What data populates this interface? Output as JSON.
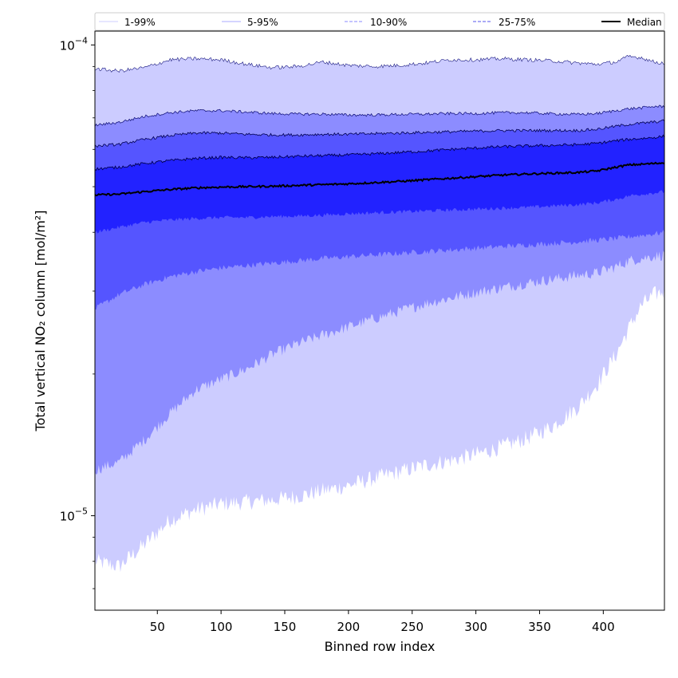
{
  "chart_data": {
    "type": "area",
    "title": "",
    "xlabel": "Binned row index",
    "ylabel": "Total vertical NO₂ column [mol/m²]",
    "yscale": "log",
    "xlim": [
      1,
      448
    ],
    "ylim": [
      6.3e-06,
      0.000107
    ],
    "xticks": [
      50,
      100,
      150,
      200,
      250,
      300,
      350,
      400
    ],
    "yticks": [
      {
        "value": 1e-05,
        "base": "10",
        "exp": "−5"
      },
      {
        "value": 0.0001,
        "base": "10",
        "exp": "−4"
      }
    ],
    "grid": false,
    "legend_position": "top",
    "legend": [
      {
        "label": "1-99%",
        "style": "solid",
        "color": "#ccccff"
      },
      {
        "label": "5-95%",
        "style": "solid",
        "color": "#aaaaff"
      },
      {
        "label": "10-90%",
        "style": "dashed",
        "color": "#8888ff"
      },
      {
        "label": "25-75%",
        "style": "dashed",
        "color": "#5555ee"
      },
      {
        "label": "Median",
        "style": "solid",
        "color": "#000000"
      }
    ],
    "colors": {
      "band_1_99": "#ccccff",
      "band_5_95": "#8c8cff",
      "band_10_90": "#5555ff",
      "band_25_75": "#2222ff",
      "median": "#000000"
    },
    "x": [
      1,
      20,
      40,
      60,
      80,
      100,
      120,
      140,
      160,
      180,
      200,
      220,
      240,
      260,
      280,
      300,
      320,
      340,
      360,
      380,
      395,
      410,
      420,
      430,
      440,
      448
    ],
    "series": [
      {
        "name": "P1",
        "values": [
          8e-06,
          7.8e-06,
          8.7e-06,
          9.8e-06,
          1.03e-05,
          1.06e-05,
          1.07e-05,
          1.08e-05,
          1.1e-05,
          1.13e-05,
          1.16e-05,
          1.2e-05,
          1.24e-05,
          1.28e-05,
          1.31e-05,
          1.35e-05,
          1.4e-05,
          1.46e-05,
          1.55e-05,
          1.7e-05,
          1.9e-05,
          2.2e-05,
          2.5e-05,
          2.8e-05,
          2.95e-05,
          3e-05
        ]
      },
      {
        "name": "P5",
        "values": [
          1.25e-05,
          1.3e-05,
          1.45e-05,
          1.65e-05,
          1.85e-05,
          1.95e-05,
          2.05e-05,
          2.2e-05,
          2.32e-05,
          2.42e-05,
          2.52e-05,
          2.62e-05,
          2.72e-05,
          2.82e-05,
          2.9e-05,
          2.98e-05,
          3.05e-05,
          3.12e-05,
          3.18e-05,
          3.24e-05,
          3.28e-05,
          3.38e-05,
          3.48e-05,
          3.52e-05,
          3.56e-05,
          3.58e-05
        ]
      },
      {
        "name": "P10",
        "values": [
          2.75e-05,
          2.95e-05,
          3.1e-05,
          3.22e-05,
          3.3e-05,
          3.36e-05,
          3.4e-05,
          3.44e-05,
          3.48e-05,
          3.52e-05,
          3.55e-05,
          3.58e-05,
          3.61e-05,
          3.64e-05,
          3.67e-05,
          3.7e-05,
          3.73e-05,
          3.76e-05,
          3.79e-05,
          3.82e-05,
          3.85e-05,
          3.88e-05,
          3.91e-05,
          3.94e-05,
          3.97e-05,
          4e-05
        ]
      },
      {
        "name": "P25",
        "values": [
          4e-05,
          4.1e-05,
          4.2e-05,
          4.25e-05,
          4.28e-05,
          4.3e-05,
          4.3e-05,
          4.32e-05,
          4.33e-05,
          4.35e-05,
          4.38e-05,
          4.4e-05,
          4.42e-05,
          4.44e-05,
          4.46e-05,
          4.48e-05,
          4.5e-05,
          4.52e-05,
          4.55e-05,
          4.58e-05,
          4.62e-05,
          4.7e-05,
          4.78e-05,
          4.82e-05,
          4.85e-05,
          4.88e-05
        ]
      },
      {
        "name": "Median",
        "values": [
          4.8e-05,
          4.82e-05,
          4.88e-05,
          4.93e-05,
          4.97e-05,
          4.99e-05,
          5e-05,
          5.01e-05,
          5.03e-05,
          5.05e-05,
          5.07e-05,
          5.1e-05,
          5.13e-05,
          5.17e-05,
          5.21e-05,
          5.25e-05,
          5.29e-05,
          5.32e-05,
          5.34e-05,
          5.36e-05,
          5.4e-05,
          5.5e-05,
          5.56e-05,
          5.58e-05,
          5.6e-05,
          5.62e-05
        ]
      },
      {
        "name": "P75",
        "values": [
          5.45e-05,
          5.5e-05,
          5.6e-05,
          5.68e-05,
          5.74e-05,
          5.77e-05,
          5.76e-05,
          5.77e-05,
          5.8e-05,
          5.82e-05,
          5.84e-05,
          5.87e-05,
          5.91e-05,
          5.95e-05,
          6e-05,
          6.04e-05,
          6.08e-05,
          6.1e-05,
          6.12e-05,
          6.14e-05,
          6.18e-05,
          6.26e-05,
          6.3e-05,
          6.33e-05,
          6.36e-05,
          6.4e-05
        ]
      },
      {
        "name": "P90",
        "values": [
          6.1e-05,
          6.15e-05,
          6.3e-05,
          6.42e-05,
          6.5e-05,
          6.5e-05,
          6.46e-05,
          6.44e-05,
          6.44e-05,
          6.46e-05,
          6.46e-05,
          6.48e-05,
          6.5e-05,
          6.52e-05,
          6.54e-05,
          6.56e-05,
          6.58e-05,
          6.58e-05,
          6.58e-05,
          6.58e-05,
          6.62e-05,
          6.72e-05,
          6.78e-05,
          6.82e-05,
          6.86e-05,
          6.9e-05
        ]
      },
      {
        "name": "P95",
        "values": [
          6.75e-05,
          6.85e-05,
          7.05e-05,
          7.18e-05,
          7.25e-05,
          7.25e-05,
          7.2e-05,
          7.15e-05,
          7.13e-05,
          7.13e-05,
          7.1e-05,
          7.1e-05,
          7.12e-05,
          7.13e-05,
          7.15e-05,
          7.15e-05,
          7.18e-05,
          7.18e-05,
          7.14e-05,
          7.12e-05,
          7.15e-05,
          7.25e-05,
          7.32e-05,
          7.35e-05,
          7.4e-05,
          7.4e-05
        ]
      },
      {
        "name": "P99",
        "values": [
          8.9e-05,
          8.8e-05,
          8.95e-05,
          9.3e-05,
          9.35e-05,
          9.3e-05,
          9.1e-05,
          8.95e-05,
          9e-05,
          9.2e-05,
          9.05e-05,
          9e-05,
          9.05e-05,
          9.15e-05,
          9.3e-05,
          9.3e-05,
          9.35e-05,
          9.3e-05,
          9.25e-05,
          9.15e-05,
          9.1e-05,
          9.2e-05,
          9.45e-05,
          9.4e-05,
          9.2e-05,
          9.15e-05
        ]
      }
    ]
  }
}
